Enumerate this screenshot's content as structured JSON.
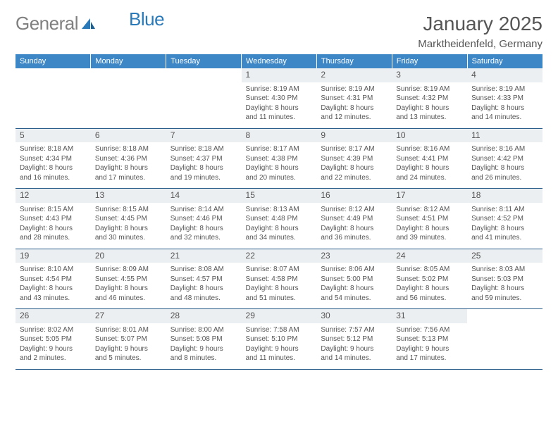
{
  "brand": {
    "gray": "General",
    "blue": "Blue"
  },
  "title": "January 2025",
  "location": "Marktheidenfeld, Germany",
  "colors": {
    "header_bg": "#3d87c7",
    "header_text": "#ffffff",
    "daynum_bg": "#eceff1",
    "text": "#555555",
    "rule": "#2a5d8a",
    "logo_gray": "#808080",
    "logo_blue": "#2a7ab9"
  },
  "daynames": [
    "Sunday",
    "Monday",
    "Tuesday",
    "Wednesday",
    "Thursday",
    "Friday",
    "Saturday"
  ],
  "weeks": [
    [
      {
        "n": "",
        "l1": "",
        "l2": "",
        "l3": "",
        "l4": ""
      },
      {
        "n": "",
        "l1": "",
        "l2": "",
        "l3": "",
        "l4": ""
      },
      {
        "n": "",
        "l1": "",
        "l2": "",
        "l3": "",
        "l4": ""
      },
      {
        "n": "1",
        "l1": "Sunrise: 8:19 AM",
        "l2": "Sunset: 4:30 PM",
        "l3": "Daylight: 8 hours",
        "l4": "and 11 minutes."
      },
      {
        "n": "2",
        "l1": "Sunrise: 8:19 AM",
        "l2": "Sunset: 4:31 PM",
        "l3": "Daylight: 8 hours",
        "l4": "and 12 minutes."
      },
      {
        "n": "3",
        "l1": "Sunrise: 8:19 AM",
        "l2": "Sunset: 4:32 PM",
        "l3": "Daylight: 8 hours",
        "l4": "and 13 minutes."
      },
      {
        "n": "4",
        "l1": "Sunrise: 8:19 AM",
        "l2": "Sunset: 4:33 PM",
        "l3": "Daylight: 8 hours",
        "l4": "and 14 minutes."
      }
    ],
    [
      {
        "n": "5",
        "l1": "Sunrise: 8:18 AM",
        "l2": "Sunset: 4:34 PM",
        "l3": "Daylight: 8 hours",
        "l4": "and 16 minutes."
      },
      {
        "n": "6",
        "l1": "Sunrise: 8:18 AM",
        "l2": "Sunset: 4:36 PM",
        "l3": "Daylight: 8 hours",
        "l4": "and 17 minutes."
      },
      {
        "n": "7",
        "l1": "Sunrise: 8:18 AM",
        "l2": "Sunset: 4:37 PM",
        "l3": "Daylight: 8 hours",
        "l4": "and 19 minutes."
      },
      {
        "n": "8",
        "l1": "Sunrise: 8:17 AM",
        "l2": "Sunset: 4:38 PM",
        "l3": "Daylight: 8 hours",
        "l4": "and 20 minutes."
      },
      {
        "n": "9",
        "l1": "Sunrise: 8:17 AM",
        "l2": "Sunset: 4:39 PM",
        "l3": "Daylight: 8 hours",
        "l4": "and 22 minutes."
      },
      {
        "n": "10",
        "l1": "Sunrise: 8:16 AM",
        "l2": "Sunset: 4:41 PM",
        "l3": "Daylight: 8 hours",
        "l4": "and 24 minutes."
      },
      {
        "n": "11",
        "l1": "Sunrise: 8:16 AM",
        "l2": "Sunset: 4:42 PM",
        "l3": "Daylight: 8 hours",
        "l4": "and 26 minutes."
      }
    ],
    [
      {
        "n": "12",
        "l1": "Sunrise: 8:15 AM",
        "l2": "Sunset: 4:43 PM",
        "l3": "Daylight: 8 hours",
        "l4": "and 28 minutes."
      },
      {
        "n": "13",
        "l1": "Sunrise: 8:15 AM",
        "l2": "Sunset: 4:45 PM",
        "l3": "Daylight: 8 hours",
        "l4": "and 30 minutes."
      },
      {
        "n": "14",
        "l1": "Sunrise: 8:14 AM",
        "l2": "Sunset: 4:46 PM",
        "l3": "Daylight: 8 hours",
        "l4": "and 32 minutes."
      },
      {
        "n": "15",
        "l1": "Sunrise: 8:13 AM",
        "l2": "Sunset: 4:48 PM",
        "l3": "Daylight: 8 hours",
        "l4": "and 34 minutes."
      },
      {
        "n": "16",
        "l1": "Sunrise: 8:12 AM",
        "l2": "Sunset: 4:49 PM",
        "l3": "Daylight: 8 hours",
        "l4": "and 36 minutes."
      },
      {
        "n": "17",
        "l1": "Sunrise: 8:12 AM",
        "l2": "Sunset: 4:51 PM",
        "l3": "Daylight: 8 hours",
        "l4": "and 39 minutes."
      },
      {
        "n": "18",
        "l1": "Sunrise: 8:11 AM",
        "l2": "Sunset: 4:52 PM",
        "l3": "Daylight: 8 hours",
        "l4": "and 41 minutes."
      }
    ],
    [
      {
        "n": "19",
        "l1": "Sunrise: 8:10 AM",
        "l2": "Sunset: 4:54 PM",
        "l3": "Daylight: 8 hours",
        "l4": "and 43 minutes."
      },
      {
        "n": "20",
        "l1": "Sunrise: 8:09 AM",
        "l2": "Sunset: 4:55 PM",
        "l3": "Daylight: 8 hours",
        "l4": "and 46 minutes."
      },
      {
        "n": "21",
        "l1": "Sunrise: 8:08 AM",
        "l2": "Sunset: 4:57 PM",
        "l3": "Daylight: 8 hours",
        "l4": "and 48 minutes."
      },
      {
        "n": "22",
        "l1": "Sunrise: 8:07 AM",
        "l2": "Sunset: 4:58 PM",
        "l3": "Daylight: 8 hours",
        "l4": "and 51 minutes."
      },
      {
        "n": "23",
        "l1": "Sunrise: 8:06 AM",
        "l2": "Sunset: 5:00 PM",
        "l3": "Daylight: 8 hours",
        "l4": "and 54 minutes."
      },
      {
        "n": "24",
        "l1": "Sunrise: 8:05 AM",
        "l2": "Sunset: 5:02 PM",
        "l3": "Daylight: 8 hours",
        "l4": "and 56 minutes."
      },
      {
        "n": "25",
        "l1": "Sunrise: 8:03 AM",
        "l2": "Sunset: 5:03 PM",
        "l3": "Daylight: 8 hours",
        "l4": "and 59 minutes."
      }
    ],
    [
      {
        "n": "26",
        "l1": "Sunrise: 8:02 AM",
        "l2": "Sunset: 5:05 PM",
        "l3": "Daylight: 9 hours",
        "l4": "and 2 minutes."
      },
      {
        "n": "27",
        "l1": "Sunrise: 8:01 AM",
        "l2": "Sunset: 5:07 PM",
        "l3": "Daylight: 9 hours",
        "l4": "and 5 minutes."
      },
      {
        "n": "28",
        "l1": "Sunrise: 8:00 AM",
        "l2": "Sunset: 5:08 PM",
        "l3": "Daylight: 9 hours",
        "l4": "and 8 minutes."
      },
      {
        "n": "29",
        "l1": "Sunrise: 7:58 AM",
        "l2": "Sunset: 5:10 PM",
        "l3": "Daylight: 9 hours",
        "l4": "and 11 minutes."
      },
      {
        "n": "30",
        "l1": "Sunrise: 7:57 AM",
        "l2": "Sunset: 5:12 PM",
        "l3": "Daylight: 9 hours",
        "l4": "and 14 minutes."
      },
      {
        "n": "31",
        "l1": "Sunrise: 7:56 AM",
        "l2": "Sunset: 5:13 PM",
        "l3": "Daylight: 9 hours",
        "l4": "and 17 minutes."
      },
      {
        "n": "",
        "l1": "",
        "l2": "",
        "l3": "",
        "l4": ""
      }
    ]
  ]
}
